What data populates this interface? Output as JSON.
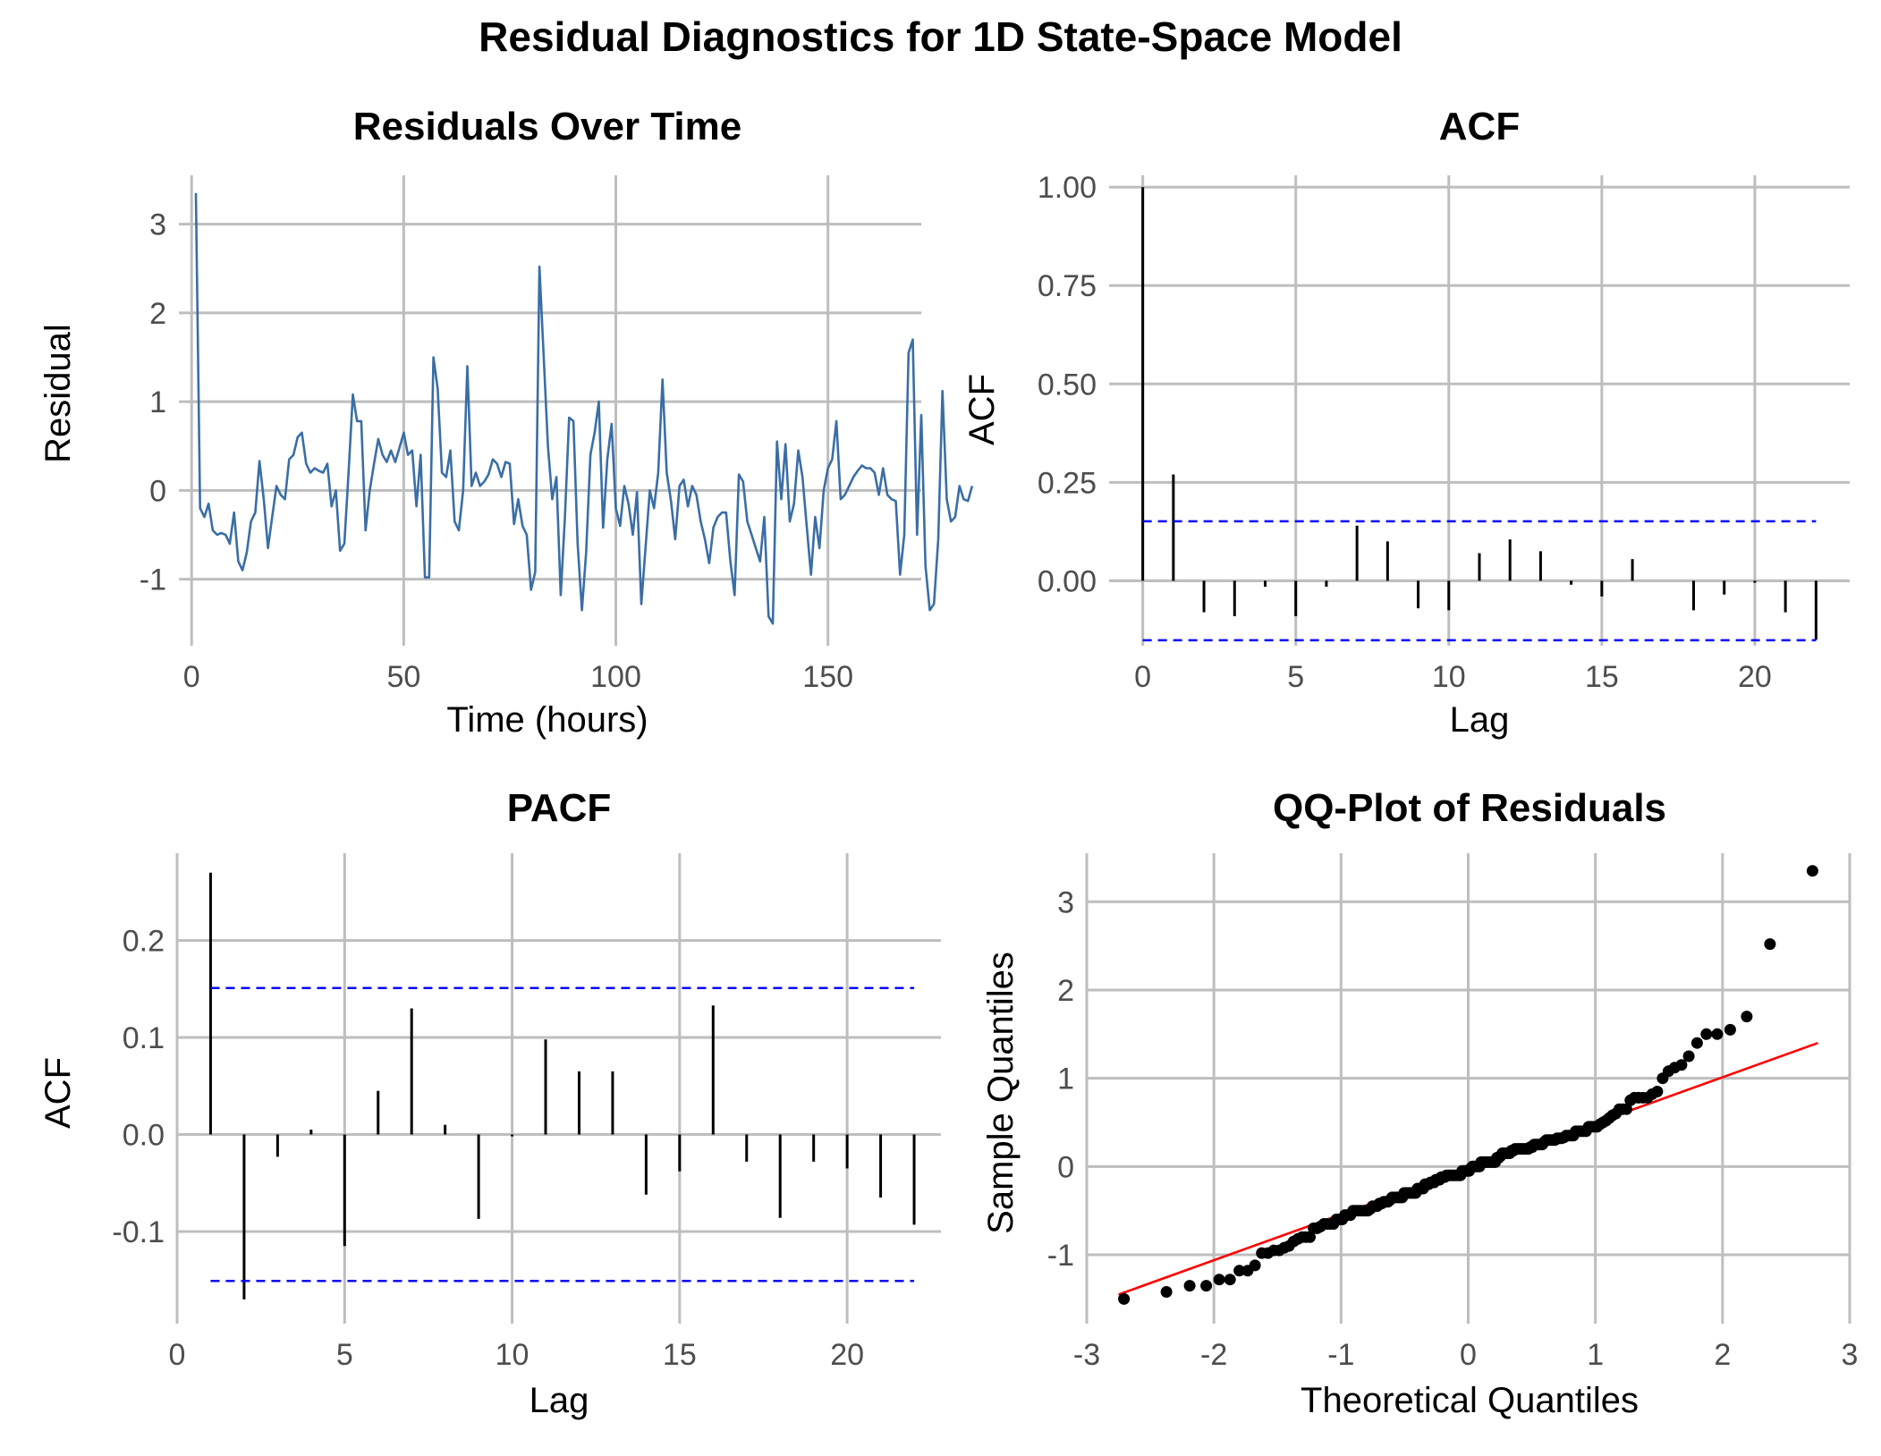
{
  "title": "Residual Diagnostics for 1D State-Space Model",
  "colors": {
    "grid": "#bebebe",
    "residual_line": "#3a6ea5",
    "bar": "#000000",
    "ci": "#0000ff",
    "qq_line": "#ff0000",
    "qq_point": "#000000",
    "text": "#4d4d4d",
    "title": "#000000"
  },
  "chart_data": [
    {
      "id": "residuals",
      "type": "line",
      "title": "Residuals Over Time",
      "xlabel": "Time (hours)",
      "ylabel": "Residual",
      "xlim": [
        -3,
        172
      ],
      "ylim": [
        -1.75,
        3.55
      ],
      "xticks": [
        0,
        50,
        100,
        150
      ],
      "yticks": [
        -1,
        0,
        1,
        2,
        3
      ],
      "x_start": 1,
      "y": [
        3.35,
        -0.2,
        -0.3,
        -0.15,
        -0.45,
        -0.5,
        -0.48,
        -0.5,
        -0.6,
        -0.25,
        -0.8,
        -0.9,
        -0.7,
        -0.35,
        -0.25,
        0.33,
        -0.1,
        -0.65,
        -0.3,
        0.05,
        -0.05,
        -0.1,
        0.35,
        0.4,
        0.6,
        0.65,
        0.3,
        0.2,
        0.25,
        0.22,
        0.2,
        0.3,
        -0.18,
        0.0,
        -0.68,
        -0.6,
        0.2,
        1.08,
        0.78,
        0.78,
        -0.45,
        0.0,
        0.3,
        0.58,
        0.4,
        0.32,
        0.45,
        0.32,
        0.48,
        0.65,
        0.4,
        0.45,
        -0.18,
        0.4,
        -0.98,
        -0.98,
        1.5,
        1.15,
        0.2,
        0.15,
        0.45,
        -0.35,
        -0.45,
        0.0,
        1.4,
        0.05,
        0.2,
        0.05,
        0.1,
        0.18,
        0.35,
        0.3,
        0.15,
        0.32,
        0.3,
        -0.38,
        -0.1,
        -0.4,
        -0.5,
        -1.12,
        -0.92,
        2.52,
        1.5,
        0.5,
        -0.1,
        0.15,
        -1.18,
        -0.3,
        0.82,
        0.78,
        -0.6,
        -1.35,
        -0.7,
        0.4,
        0.65,
        1.0,
        -0.42,
        0.35,
        0.75,
        -0.2,
        -0.4,
        0.05,
        -0.15,
        -0.5,
        -0.02,
        -1.28,
        -0.65,
        0.0,
        -0.2,
        0.2,
        1.25,
        0.2,
        -0.12,
        -0.55,
        0.05,
        0.12,
        -0.18,
        0.05,
        -0.05,
        -0.35,
        -0.55,
        -0.82,
        -0.42,
        -0.3,
        -0.25,
        -0.25,
        -0.8,
        -1.18,
        0.18,
        0.1,
        -0.35,
        -0.5,
        -0.65,
        -0.8,
        -0.3,
        -1.42,
        -1.5,
        0.55,
        -0.1,
        0.52,
        -0.35,
        -0.15,
        0.45,
        0.15,
        -0.4,
        -0.95,
        -0.3,
        -0.65,
        0.0,
        0.25,
        0.35,
        0.78,
        -0.1,
        -0.05,
        0.05,
        0.15,
        0.22,
        0.28,
        0.25,
        0.25,
        0.2,
        -0.05,
        0.25,
        -0.05,
        -0.1,
        -0.12,
        -0.95,
        -0.5,
        1.55,
        1.7,
        -0.5,
        0.85,
        -0.85,
        -1.35,
        -1.28,
        -0.55,
        1.12,
        -0.1,
        -0.35,
        -0.3,
        0.05,
        -0.1,
        -0.12,
        0.05
      ]
    },
    {
      "id": "acf",
      "type": "bar",
      "title": "ACF",
      "xlabel": "Lag",
      "ylabel": "ACF",
      "xlim": [
        -1.1,
        23.1
      ],
      "ylim": [
        -0.165,
        1.03
      ],
      "xticks": [
        0,
        5,
        10,
        15,
        20
      ],
      "yticks": [
        0.0,
        0.25,
        0.5,
        0.75,
        1.0
      ],
      "ytick_labels": [
        "0.00",
        "0.25",
        "0.50",
        "0.75",
        "1.00"
      ],
      "lags": [
        0,
        1,
        2,
        3,
        4,
        5,
        6,
        7,
        8,
        9,
        10,
        11,
        12,
        13,
        14,
        15,
        16,
        17,
        18,
        19,
        20,
        21,
        22
      ],
      "values": [
        1.0,
        0.27,
        -0.08,
        -0.09,
        -0.015,
        -0.09,
        -0.015,
        0.14,
        0.1,
        -0.07,
        -0.075,
        0.07,
        0.105,
        0.075,
        -0.01,
        -0.04,
        0.055,
        0.0,
        -0.075,
        -0.035,
        -0.005,
        -0.08,
        -0.15
      ],
      "ci": 0.151
    },
    {
      "id": "pacf",
      "type": "bar",
      "title": "PACF",
      "xlabel": "Lag",
      "ylabel": "ACF",
      "xlim": [
        0,
        22.8
      ],
      "ylim": [
        -0.195,
        0.29
      ],
      "xticks": [
        0,
        5,
        10,
        15,
        20
      ],
      "yticks": [
        -0.1,
        0.0,
        0.1,
        0.2
      ],
      "ytick_labels": [
        "-0.1",
        "0.0",
        "0.1",
        "0.2"
      ],
      "lags": [
        1,
        2,
        3,
        4,
        5,
        6,
        7,
        8,
        9,
        10,
        11,
        12,
        13,
        14,
        15,
        16,
        17,
        18,
        19,
        20,
        21,
        22
      ],
      "values": [
        0.27,
        -0.17,
        -0.023,
        0.005,
        -0.115,
        0.045,
        0.13,
        0.01,
        -0.087,
        -0.002,
        0.098,
        0.065,
        0.065,
        -0.062,
        -0.038,
        0.133,
        -0.028,
        -0.086,
        -0.028,
        -0.035,
        -0.065,
        -0.093
      ],
      "ci": 0.151
    },
    {
      "id": "qq",
      "type": "scatter",
      "title": "QQ-Plot of Residuals",
      "xlabel": "Theoretical Quantiles",
      "ylabel": "Sample Quantiles",
      "xlim": [
        -3,
        3
      ],
      "ylim": [
        -1.78,
        3.55
      ],
      "xticks": [
        -3,
        -2,
        -1,
        0,
        1,
        2,
        3
      ],
      "yticks": [
        -1,
        0,
        1,
        2,
        3
      ],
      "line": {
        "x": [
          -2.75,
          2.75
        ],
        "y": [
          -1.45,
          1.4
        ]
      }
    }
  ]
}
